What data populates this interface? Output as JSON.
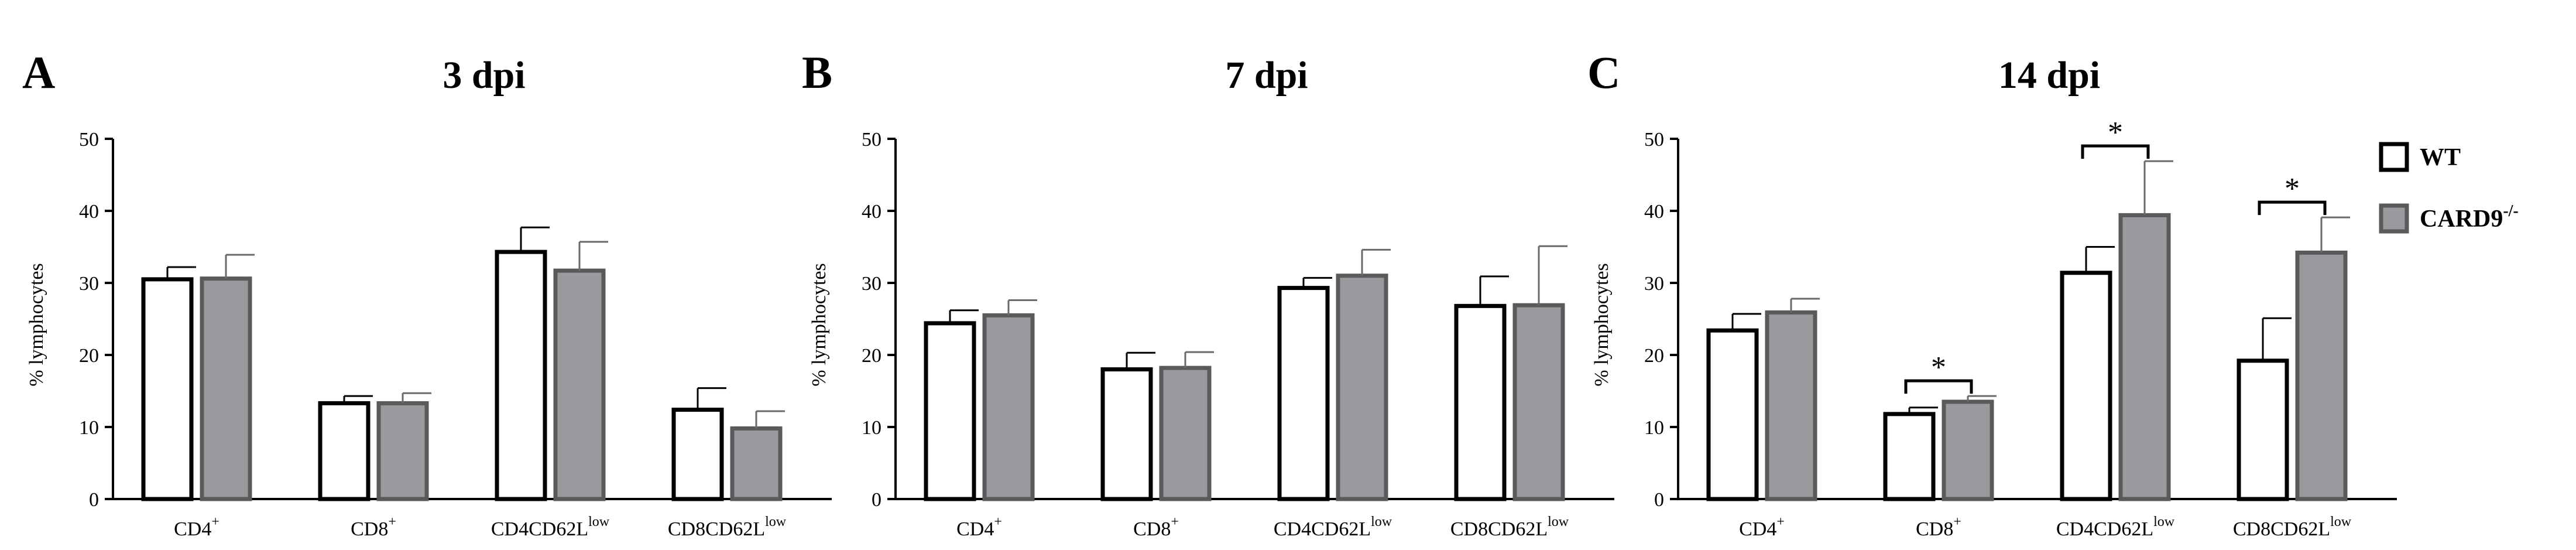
{
  "figure": {
    "legend": {
      "position": "right",
      "items": [
        {
          "name": "WT",
          "sup": "",
          "color": "#ffffff",
          "stroke": "#000000"
        },
        {
          "name": "CARD9",
          "sup": "-/-",
          "color": "#9a9a9e",
          "stroke": "#5a5a5a"
        }
      ]
    }
  },
  "chart_data": [
    {
      "type": "bar",
      "panel": "A",
      "title": "3 dpi",
      "ylabel": "% lymphocytes",
      "ylim": [
        0,
        50
      ],
      "yticks": [
        "0",
        "10",
        "20",
        "30",
        "40",
        "50"
      ],
      "categories": [
        {
          "base": "CD4",
          "sup": "+"
        },
        {
          "base": "CD8",
          "sup": "+"
        },
        {
          "base": "CD4CD62L",
          "sup": "low"
        },
        {
          "base": "CD8CD62L",
          "sup": "low"
        }
      ],
      "series": [
        {
          "name": "WT",
          "values": [
            30.5,
            13.3,
            34.3,
            12.4
          ],
          "errors": [
            1.7,
            1.0,
            3.4,
            3.0
          ]
        },
        {
          "name": "CARD9",
          "values": [
            30.6,
            13.3,
            31.7,
            9.8
          ],
          "errors": [
            3.3,
            1.4,
            4.0,
            2.4
          ]
        }
      ],
      "significance": []
    },
    {
      "type": "bar",
      "panel": "B",
      "title": "7 dpi",
      "ylabel": "% lymphocytes",
      "ylim": [
        0,
        50
      ],
      "yticks": [
        "0",
        "10",
        "20",
        "30",
        "40",
        "50"
      ],
      "categories": [
        {
          "base": "CD4",
          "sup": "+"
        },
        {
          "base": "CD8",
          "sup": "+"
        },
        {
          "base": "CD4CD62L",
          "sup": "low"
        },
        {
          "base": "CD8CD62L",
          "sup": "low"
        }
      ],
      "series": [
        {
          "name": "WT",
          "values": [
            24.4,
            18.0,
            29.3,
            26.8
          ],
          "errors": [
            1.8,
            2.3,
            1.4,
            4.1
          ]
        },
        {
          "name": "CARD9",
          "values": [
            25.5,
            18.2,
            31.0,
            26.9
          ],
          "errors": [
            2.1,
            2.2,
            3.6,
            8.2
          ]
        }
      ],
      "significance": []
    },
    {
      "type": "bar",
      "panel": "C",
      "title": "14 dpi",
      "ylabel": "% lymphocytes",
      "ylim": [
        0,
        50
      ],
      "yticks": [
        "0",
        "10",
        "20",
        "30",
        "40",
        "50"
      ],
      "categories": [
        {
          "base": "CD4",
          "sup": "+"
        },
        {
          "base": "CD8",
          "sup": "+"
        },
        {
          "base": "CD4CD62L",
          "sup": "low"
        },
        {
          "base": "CD8CD62L",
          "sup": "low"
        }
      ],
      "series": [
        {
          "name": "WT",
          "values": [
            23.4,
            11.8,
            31.4,
            19.2
          ],
          "errors": [
            2.3,
            0.9,
            3.6,
            5.9
          ]
        },
        {
          "name": "CARD9",
          "values": [
            25.9,
            13.5,
            39.4,
            34.2
          ],
          "errors": [
            1.9,
            0.8,
            7.5,
            4.9
          ]
        }
      ],
      "significance": [
        {
          "category": 1,
          "label": "*"
        },
        {
          "category": 2,
          "label": "*"
        },
        {
          "category": 3,
          "label": "*"
        }
      ]
    }
  ]
}
